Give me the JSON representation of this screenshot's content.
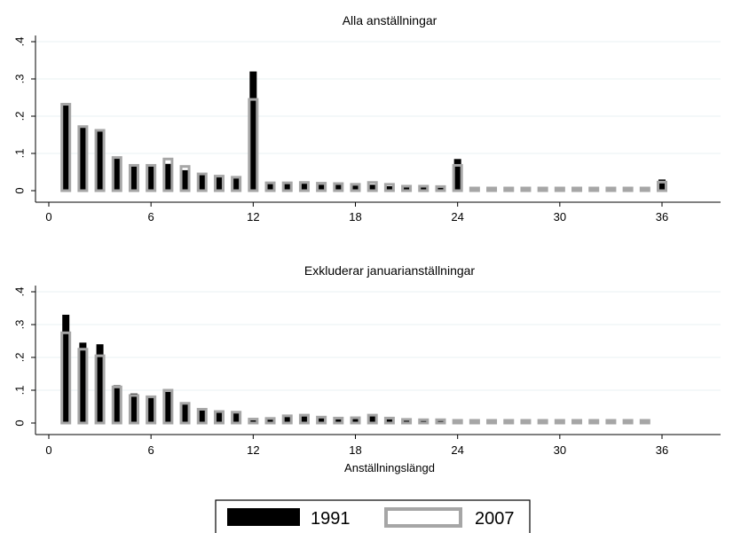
{
  "chart_data": [
    {
      "type": "bar",
      "title": "Alla anställningar",
      "xlabel": "",
      "ylabel": "",
      "xlim": [
        -1,
        40
      ],
      "ylim": [
        0,
        0.42
      ],
      "xticks": [
        0,
        6,
        12,
        18,
        24,
        30,
        36
      ],
      "xtick_labels": [
        "0",
        "6",
        "12",
        "18",
        "24",
        "30",
        "36"
      ],
      "yticks": [
        0,
        0.1,
        0.2,
        0.3,
        0.4
      ],
      "ytick_labels": [
        "0",
        ".1",
        ".2",
        ".3",
        ".4"
      ],
      "grid": true,
      "x": [
        1,
        2,
        3,
        4,
        5,
        6,
        7,
        8,
        9,
        10,
        11,
        12,
        13,
        14,
        15,
        16,
        17,
        18,
        19,
        20,
        21,
        22,
        23,
        24,
        25,
        26,
        27,
        28,
        29,
        30,
        31,
        32,
        33,
        34,
        35,
        36
      ],
      "series": [
        {
          "name": "1991",
          "values": [
            0.235,
            0.17,
            0.16,
            0.087,
            0.066,
            0.066,
            0.072,
            0.055,
            0.043,
            0.038,
            0.034,
            0.32,
            0.018,
            0.018,
            0.019,
            0.016,
            0.016,
            0.014,
            0.016,
            0.012,
            0.011,
            0.009,
            0.009,
            0.085,
            0.006,
            0.006,
            0.006,
            0.006,
            0.006,
            0.006,
            0.006,
            0.006,
            0.006,
            0.006,
            0.006,
            0.03
          ]
        },
        {
          "name": "2007",
          "values": [
            0.232,
            0.172,
            0.162,
            0.089,
            0.068,
            0.068,
            0.085,
            0.065,
            0.045,
            0.039,
            0.036,
            0.245,
            0.021,
            0.021,
            0.022,
            0.02,
            0.019,
            0.017,
            0.022,
            0.017,
            0.012,
            0.012,
            0.011,
            0.068,
            0.006,
            0.006,
            0.006,
            0.006,
            0.006,
            0.006,
            0.006,
            0.006,
            0.006,
            0.006,
            0.006,
            0.023
          ]
        }
      ]
    },
    {
      "type": "bar",
      "title": "Exkluderar januarianställningar",
      "xlabel": "Anställningslängd",
      "ylabel": "",
      "xlim": [
        -1,
        40
      ],
      "ylim": [
        0,
        0.42
      ],
      "xticks": [
        0,
        6,
        12,
        18,
        24,
        30,
        36
      ],
      "xtick_labels": [
        "0",
        "6",
        "12",
        "18",
        "24",
        "30",
        "36"
      ],
      "yticks": [
        0,
        0.1,
        0.2,
        0.3,
        0.4
      ],
      "ytick_labels": [
        "0",
        ".1",
        ".2",
        ".3",
        ".4"
      ],
      "grid": true,
      "x": [
        1,
        2,
        3,
        4,
        5,
        6,
        7,
        8,
        9,
        10,
        11,
        12,
        13,
        14,
        15,
        16,
        17,
        18,
        19,
        20,
        21,
        22,
        23,
        24,
        25,
        26,
        27,
        28,
        29,
        30,
        31,
        32,
        33,
        34,
        35
      ],
      "series": [
        {
          "name": "1991",
          "values": [
            0.33,
            0.245,
            0.24,
            0.115,
            0.09,
            0.077,
            0.095,
            0.058,
            0.045,
            0.038,
            0.035,
            0.012,
            0.012,
            0.02,
            0.02,
            0.02,
            0.017,
            0.017,
            0.022,
            0.013,
            0.01,
            0.009,
            0.009,
            0.005,
            0.005,
            0.006,
            0.006,
            0.006,
            0.004,
            0.004,
            0.006,
            0.005,
            0.005,
            0.005,
            0.004
          ]
        },
        {
          "name": "2007",
          "values": [
            0.275,
            0.225,
            0.205,
            0.11,
            0.084,
            0.08,
            0.1,
            0.06,
            0.042,
            0.035,
            0.033,
            0.012,
            0.014,
            0.022,
            0.024,
            0.018,
            0.015,
            0.016,
            0.024,
            0.015,
            0.011,
            0.01,
            0.01,
            0.004,
            0.004,
            0.007,
            0.007,
            0.007,
            0.004,
            0.004,
            0.006,
            0.005,
            0.005,
            0.005,
            0.004
          ]
        }
      ]
    }
  ],
  "colors": {
    "series_1991_fill": "#000000",
    "series_2007_outline": "#a6a6a6",
    "gridline": "#eaf1f3",
    "axis": "#000000"
  },
  "legend": {
    "placement": "bottom-center",
    "items": [
      {
        "label": "1991"
      },
      {
        "label": "2007"
      }
    ]
  }
}
